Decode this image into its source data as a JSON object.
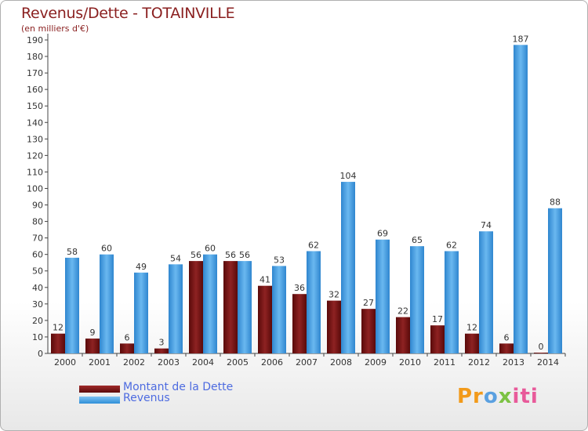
{
  "chart_data": {
    "type": "bar",
    "title": "Revenus/Dette - TOTAINVILLE",
    "subtitle": "(en milliers d'€)",
    "categories": [
      "2000",
      "2001",
      "2002",
      "2003",
      "2004",
      "2005",
      "2006",
      "2007",
      "2008",
      "2009",
      "2010",
      "2011",
      "2012",
      "2013",
      "2014"
    ],
    "series": [
      {
        "name": "Montant de la Dette",
        "values": [
          12,
          9,
          6,
          3,
          56,
          56,
          41,
          36,
          32,
          27,
          22,
          17,
          12,
          6,
          0
        ],
        "color": "#7a1414"
      },
      {
        "name": "Revenus",
        "values": [
          58,
          60,
          49,
          54,
          60,
          56,
          53,
          62,
          104,
          69,
          65,
          62,
          74,
          187,
          88
        ],
        "color": "#4aa3e8"
      }
    ],
    "ylim": [
      0,
      190
    ],
    "ytick_step": 10,
    "xlabel": "",
    "ylabel": "",
    "grid": false,
    "legend": "bottom-left"
  },
  "brand": {
    "logo_text": "Proxiti"
  }
}
